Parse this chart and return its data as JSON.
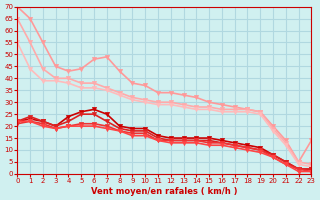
{
  "xlabel": "Vent moyen/en rafales ( km/h )",
  "ylabel": "",
  "background_color": "#d0f0f0",
  "grid_color": "#b0d8e0",
  "xlim": [
    0,
    23
  ],
  "ylim": [
    0,
    70
  ],
  "yticks": [
    0,
    5,
    10,
    15,
    20,
    25,
    30,
    35,
    40,
    45,
    50,
    55,
    60,
    65,
    70
  ],
  "xticks": [
    0,
    1,
    2,
    3,
    4,
    5,
    6,
    7,
    8,
    9,
    10,
    11,
    12,
    13,
    14,
    15,
    16,
    17,
    18,
    19,
    20,
    21,
    22,
    23
  ],
  "series": [
    {
      "x": [
        0,
        1,
        2,
        3,
        4,
        5,
        6,
        7,
        8,
        9,
        10,
        11,
        12,
        13,
        14,
        15,
        16,
        17,
        18,
        19,
        20,
        21,
        22,
        23
      ],
      "y": [
        70,
        65,
        55,
        45,
        43,
        44,
        48,
        49,
        43,
        38,
        37,
        34,
        34,
        33,
        32,
        30,
        29,
        28,
        27,
        26,
        20,
        14,
        5,
        14
      ],
      "color": "#ff9999",
      "linewidth": 1.2,
      "marker": "v",
      "markersize": 3
    },
    {
      "x": [
        0,
        1,
        2,
        3,
        4,
        5,
        6,
        7,
        8,
        9,
        10,
        11,
        12,
        13,
        14,
        15,
        16,
        17,
        18,
        19,
        20,
        21,
        22,
        23
      ],
      "y": [
        65,
        55,
        44,
        40,
        40,
        38,
        38,
        36,
        34,
        32,
        31,
        30,
        30,
        29,
        28,
        28,
        27,
        27,
        27,
        26,
        19,
        13,
        5,
        4
      ],
      "color": "#ffaaaa",
      "linewidth": 1.2,
      "marker": "v",
      "markersize": 3
    },
    {
      "x": [
        0,
        1,
        2,
        3,
        4,
        5,
        6,
        7,
        8,
        9,
        10,
        11,
        12,
        13,
        14,
        15,
        16,
        17,
        18,
        19,
        20,
        21,
        22,
        23
      ],
      "y": [
        55,
        44,
        39,
        39,
        38,
        36,
        36,
        35,
        33,
        31,
        30,
        29,
        29,
        28,
        27,
        27,
        26,
        26,
        26,
        25,
        18,
        12,
        4,
        3
      ],
      "color": "#ffbbbb",
      "linewidth": 1.2,
      "marker": "v",
      "markersize": 3
    },
    {
      "x": [
        0,
        1,
        2,
        3,
        4,
        5,
        6,
        7,
        8,
        9,
        10,
        11,
        12,
        13,
        14,
        15,
        16,
        17,
        18,
        19,
        20,
        21,
        22,
        23
      ],
      "y": [
        22,
        23,
        22,
        20,
        24,
        26,
        27,
        25,
        20,
        19,
        19,
        16,
        15,
        15,
        15,
        15,
        14,
        13,
        12,
        11,
        8,
        5,
        2,
        2
      ],
      "color": "#cc0000",
      "linewidth": 1.2,
      "marker": "v",
      "markersize": 3
    },
    {
      "x": [
        0,
        1,
        2,
        3,
        4,
        5,
        6,
        7,
        8,
        9,
        10,
        11,
        12,
        13,
        14,
        15,
        16,
        17,
        18,
        19,
        20,
        21,
        22,
        23
      ],
      "y": [
        22,
        24,
        22,
        20,
        22,
        25,
        25,
        22,
        19,
        18,
        18,
        15,
        14,
        14,
        14,
        14,
        13,
        12,
        11,
        10,
        8,
        5,
        2,
        2
      ],
      "color": "#dd2222",
      "linewidth": 1.2,
      "marker": "v",
      "markersize": 3
    },
    {
      "x": [
        0,
        1,
        2,
        3,
        4,
        5,
        6,
        7,
        8,
        9,
        10,
        11,
        12,
        13,
        14,
        15,
        16,
        17,
        18,
        19,
        20,
        21,
        22,
        23
      ],
      "y": [
        21,
        22,
        21,
        19,
        20,
        21,
        21,
        20,
        18,
        17,
        17,
        14,
        14,
        14,
        14,
        13,
        13,
        12,
        11,
        10,
        7,
        4,
        2,
        1
      ],
      "color": "#ee3333",
      "linewidth": 1.2,
      "marker": "v",
      "markersize": 3
    },
    {
      "x": [
        0,
        1,
        2,
        3,
        4,
        5,
        6,
        7,
        8,
        9,
        10,
        11,
        12,
        13,
        14,
        15,
        16,
        17,
        18,
        19,
        20,
        21,
        22,
        23
      ],
      "y": [
        22,
        22,
        20,
        19,
        20,
        20,
        20,
        19,
        18,
        16,
        16,
        14,
        13,
        13,
        13,
        12,
        12,
        11,
        10,
        9,
        7,
        4,
        1,
        1
      ],
      "color": "#ff4444",
      "linewidth": 1.2,
      "marker": "v",
      "markersize": 3
    }
  ],
  "axis_color": "#cc0000",
  "tick_color": "#cc0000",
  "label_color": "#cc0000",
  "xlabel_color": "#cc0000"
}
